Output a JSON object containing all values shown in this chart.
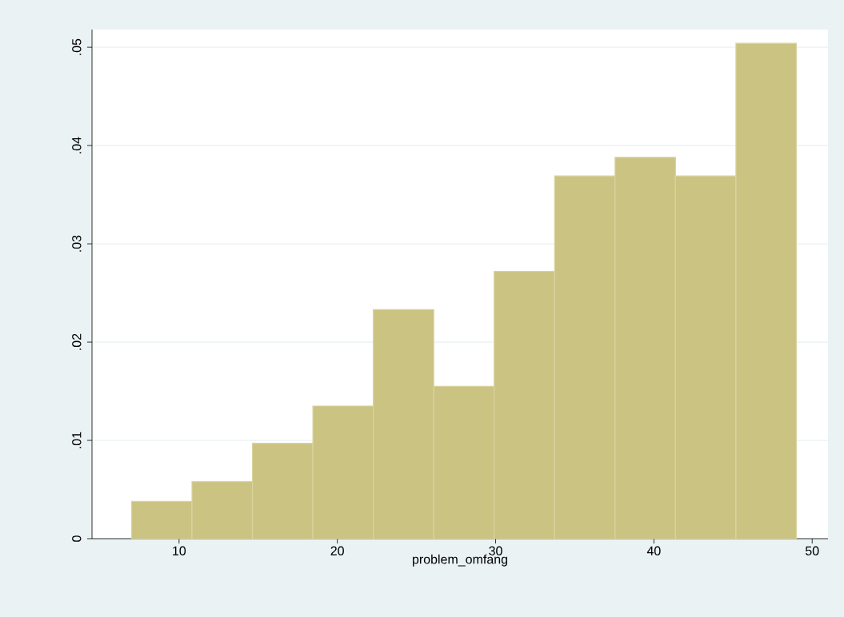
{
  "chart_data": {
    "type": "histogram",
    "xlabel": "problem_omfang",
    "bins": [
      7,
      10.818181818,
      14.636363636,
      18.454545455,
      22.272727273,
      26.090909091,
      29.909090909,
      33.727272727,
      37.545454545,
      41.363636364,
      45.181818182,
      49
    ],
    "values": [
      0.0038,
      0.0058,
      0.0097,
      0.0135,
      0.0233,
      0.0155,
      0.0272,
      0.0369,
      0.0388,
      0.0369,
      0.0504
    ],
    "color": "#cbc382",
    "xlim": [
      4.5,
      51
    ],
    "xticks": [
      10,
      20,
      30,
      40,
      50
    ],
    "ylim": [
      0,
      0.0518
    ],
    "yticks": [
      0,
      {
        "value": 0.01,
        "label": ".01"
      },
      {
        "value": 0.02,
        "label": ".02"
      },
      {
        "value": 0.03,
        "label": ".03"
      },
      {
        "value": 0.04,
        "label": ".04"
      },
      {
        "value": 0.05,
        "label": ".05"
      }
    ],
    "grid": "y"
  }
}
